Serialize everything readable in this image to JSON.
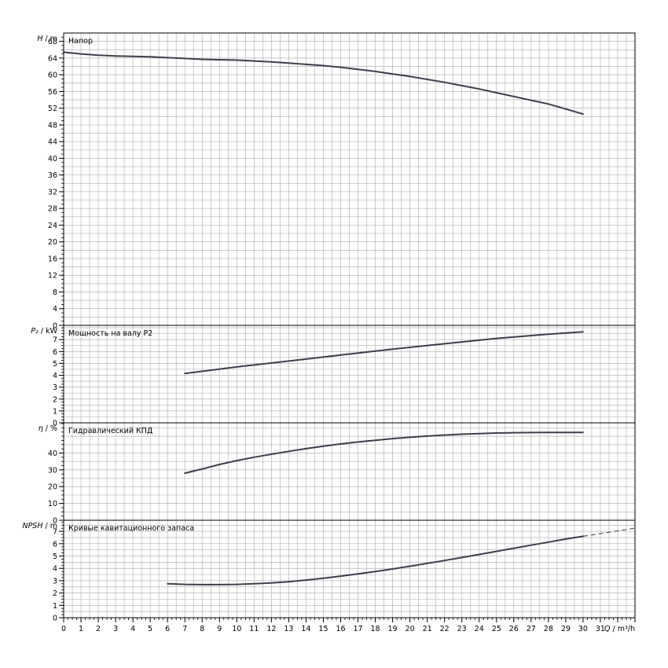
{
  "colors": {
    "curve": "#3a3f4a",
    "grid": "#b4b4b4",
    "frame": "#000000"
  },
  "x_axis": {
    "label_q": "Q",
    "label_unit": "m³/h",
    "sep": "/",
    "range": [
      0,
      33
    ],
    "ticks": [
      0,
      1,
      2,
      3,
      4,
      5,
      6,
      7,
      8,
      9,
      10,
      11,
      12,
      13,
      14,
      15,
      16,
      17,
      18,
      19,
      20,
      21,
      22,
      23,
      24,
      25,
      26,
      27,
      28,
      29,
      30,
      31
    ]
  },
  "chart_data": [
    {
      "type": "line",
      "id": "head",
      "title": "Напор",
      "ylabel_sym": "H",
      "ylabel_unit": "m",
      "ylim": [
        0,
        70
      ],
      "yticks": [
        0,
        4,
        8,
        12,
        16,
        20,
        24,
        28,
        32,
        36,
        40,
        44,
        48,
        52,
        56,
        60,
        64,
        68
      ],
      "x": [
        0,
        1,
        2,
        3,
        4,
        5,
        6,
        7,
        8,
        9,
        10,
        11,
        12,
        13,
        14,
        15,
        16,
        17,
        18,
        19,
        20,
        21,
        22,
        23,
        24,
        25,
        26,
        27,
        28,
        29,
        30
      ],
      "values": [
        65.4,
        65.0,
        64.7,
        64.5,
        64.4,
        64.3,
        64.1,
        63.9,
        63.7,
        63.6,
        63.5,
        63.3,
        63.1,
        62.8,
        62.5,
        62.2,
        61.8,
        61.3,
        60.8,
        60.2,
        59.6,
        58.9,
        58.2,
        57.4,
        56.6,
        55.7,
        54.8,
        53.9,
        53.0,
        51.8,
        50.6
      ]
    },
    {
      "type": "line",
      "id": "power",
      "title": "Мощность на валу P2",
      "ylabel_sym": "P₂",
      "ylabel_unit": "kW",
      "ylim": [
        0,
        8.2
      ],
      "yticks": [
        0,
        1,
        2,
        3,
        4,
        5,
        6,
        7
      ],
      "x": [
        7,
        10,
        13,
        16,
        19,
        22,
        25,
        28,
        30
      ],
      "values": [
        4.15,
        4.7,
        5.2,
        5.7,
        6.2,
        6.65,
        7.1,
        7.45,
        7.65
      ]
    },
    {
      "type": "line",
      "id": "efficiency",
      "title": "Гидравлический КПД",
      "ylabel_sym": "η",
      "ylabel_unit": "%",
      "ylim": [
        0,
        58
      ],
      "yticks": [
        0,
        10,
        20,
        30,
        40
      ],
      "x": [
        7,
        8,
        9,
        10,
        11,
        12,
        13,
        14,
        15,
        16,
        17,
        18,
        19,
        20,
        21,
        22,
        23,
        24,
        25,
        26,
        27,
        28,
        29,
        30
      ],
      "values": [
        28.0,
        30.5,
        33.2,
        35.5,
        37.5,
        39.3,
        41.0,
        42.6,
        44.1,
        45.4,
        46.6,
        47.6,
        48.6,
        49.4,
        50.1,
        50.7,
        51.2,
        51.6,
        51.9,
        52.1,
        52.2,
        52.3,
        52.3,
        52.3
      ]
    },
    {
      "type": "line",
      "id": "npsh",
      "title": "Кривые кавитационного запаса",
      "ylabel_sym": "NPSH",
      "ylabel_unit": "m",
      "ylim": [
        0,
        7.9
      ],
      "yticks": [
        0,
        1,
        2,
        3,
        4,
        5,
        6,
        7
      ],
      "x": [
        6,
        7,
        8,
        9,
        10,
        11,
        12,
        13,
        14,
        15,
        16,
        17,
        18,
        19,
        20,
        21,
        22,
        23,
        24,
        25,
        26,
        27,
        28,
        29,
        30
      ],
      "values": [
        2.75,
        2.7,
        2.68,
        2.68,
        2.7,
        2.75,
        2.82,
        2.92,
        3.05,
        3.2,
        3.37,
        3.55,
        3.74,
        3.95,
        4.17,
        4.4,
        4.64,
        4.88,
        5.13,
        5.38,
        5.63,
        5.88,
        6.13,
        6.38,
        6.6
      ],
      "extension_x": [
        30,
        31,
        32,
        33
      ],
      "extension_values": [
        6.6,
        6.82,
        7.04,
        7.26
      ]
    }
  ]
}
